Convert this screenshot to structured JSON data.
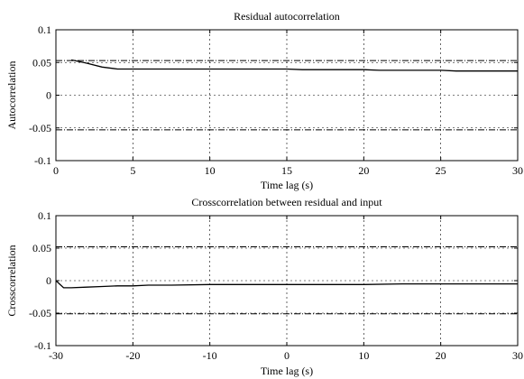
{
  "chart_data": [
    {
      "type": "line",
      "title": "Residual autocorrelation",
      "xlabel": "Time lag (s)",
      "ylabel": "Autocorrelation",
      "xlim": [
        0,
        30
      ],
      "ylim": [
        -0.1,
        0.1
      ],
      "xticks": [
        "0",
        "5",
        "10",
        "15",
        "20",
        "25",
        "30"
      ],
      "yticks": [
        "0.1",
        "0.05",
        "0",
        "-0.05",
        "-0.1"
      ],
      "grid": true,
      "confidence_bounds": [
        0.053,
        -0.053
      ],
      "series": [
        {
          "x": [
            1,
            2,
            3,
            4,
            5,
            6,
            7,
            8,
            9,
            10,
            11,
            12,
            13,
            14,
            15,
            16,
            17,
            18,
            19,
            20,
            21,
            22,
            23,
            24,
            25,
            26,
            27,
            28,
            29,
            30
          ],
          "y": [
            0.054,
            0.049,
            0.043,
            0.04,
            0.04,
            0.04,
            0.04,
            0.04,
            0.04,
            0.04,
            0.04,
            0.04,
            0.04,
            0.04,
            0.04,
            0.039,
            0.039,
            0.039,
            0.039,
            0.039,
            0.038,
            0.038,
            0.038,
            0.038,
            0.038,
            0.037,
            0.037,
            0.037,
            0.037,
            0.037
          ]
        }
      ]
    },
    {
      "type": "line",
      "title": "Crosscorrelation between residual and input",
      "xlabel": "Time lag (s)",
      "ylabel": "Crosscorrelation",
      "xlim": [
        -30,
        30
      ],
      "ylim": [
        -0.1,
        0.1
      ],
      "xticks": [
        "-30",
        "-20",
        "-10",
        "0",
        "10",
        "20",
        "30"
      ],
      "yticks": [
        "0.1",
        "0.05",
        "0",
        "-0.05",
        "-0.1"
      ],
      "grid": true,
      "confidence_bounds": [
        0.052,
        -0.051
      ],
      "series": [
        {
          "x": [
            -30,
            -29,
            -28,
            -26,
            -24,
            -22,
            -20,
            -18,
            -15,
            -10,
            -5,
            0,
            5,
            10,
            15,
            20,
            25,
            30
          ],
          "y": [
            0.0,
            -0.011,
            -0.011,
            -0.01,
            -0.009,
            -0.008,
            -0.008,
            -0.007,
            -0.007,
            -0.006,
            -0.006,
            -0.006,
            -0.006,
            -0.006,
            -0.005,
            -0.005,
            -0.005,
            -0.005
          ]
        }
      ]
    }
  ]
}
